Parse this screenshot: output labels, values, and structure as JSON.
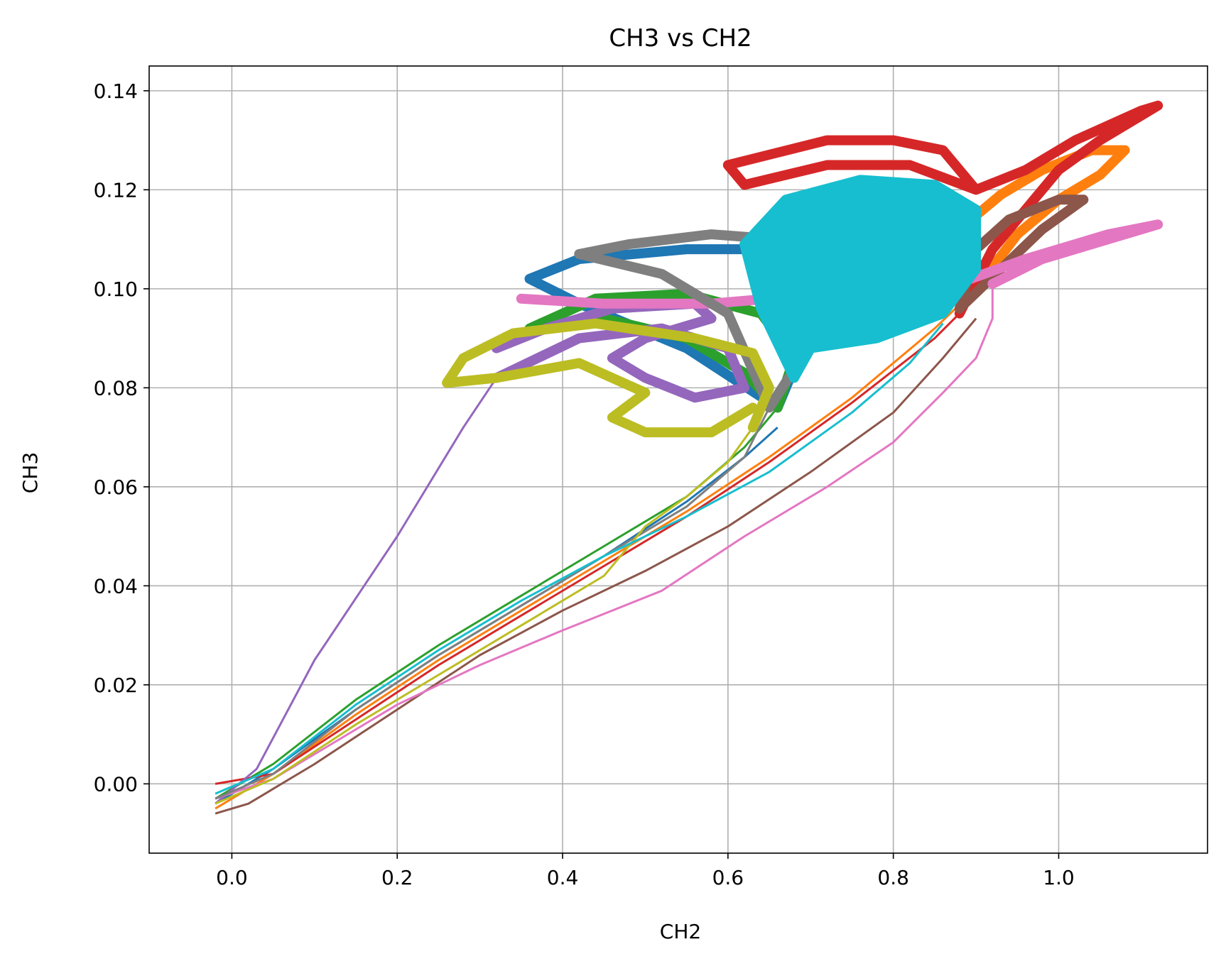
{
  "chart_data": {
    "type": "line",
    "title": "CH3 vs CH2",
    "xlabel": "CH2",
    "ylabel": "CH3",
    "xlim": [
      -0.1,
      1.18
    ],
    "ylim": [
      -0.014,
      0.145
    ],
    "grid": true,
    "x_ticks": [
      0.0,
      0.2,
      0.4,
      0.6,
      0.8,
      1.0
    ],
    "x_tick_labels": [
      "0.0",
      "0.2",
      "0.4",
      "0.6",
      "0.8",
      "1.0"
    ],
    "y_ticks": [
      0.0,
      0.02,
      0.04,
      0.06,
      0.08,
      0.1,
      0.12,
      0.14
    ],
    "y_tick_labels": [
      "0.00",
      "0.02",
      "0.04",
      "0.06",
      "0.08",
      "0.10",
      "0.12",
      "0.14"
    ],
    "colors": [
      "#1f77b4",
      "#ff7f0e",
      "#2ca02c",
      "#d62728",
      "#9467bd",
      "#8c564b",
      "#e377c2",
      "#7f7f7f",
      "#bcbd22",
      "#17becf"
    ],
    "series": [
      {
        "color": "#1f77b4",
        "ramp": [
          [
            -0.02,
            -0.004
          ],
          [
            0.05,
            0.003
          ],
          [
            0.15,
            0.015
          ],
          [
            0.25,
            0.026
          ],
          [
            0.35,
            0.036
          ],
          [
            0.45,
            0.046
          ],
          [
            0.55,
            0.057
          ],
          [
            0.62,
            0.066
          ],
          [
            0.66,
            0.072
          ]
        ],
        "loop": [
          [
            0.66,
            0.076
          ],
          [
            0.55,
            0.088
          ],
          [
            0.42,
            0.097
          ],
          [
            0.36,
            0.102
          ],
          [
            0.42,
            0.106
          ],
          [
            0.55,
            0.108
          ],
          [
            0.68,
            0.108
          ],
          [
            0.75,
            0.103
          ],
          [
            0.7,
            0.092
          ],
          [
            0.66,
            0.076
          ]
        ]
      },
      {
        "color": "#ff7f0e",
        "ramp": [
          [
            -0.02,
            -0.005
          ],
          [
            0.05,
            0.002
          ],
          [
            0.15,
            0.014
          ],
          [
            0.25,
            0.025
          ],
          [
            0.35,
            0.035
          ],
          [
            0.45,
            0.045
          ],
          [
            0.55,
            0.055
          ],
          [
            0.65,
            0.066
          ],
          [
            0.75,
            0.078
          ],
          [
            0.85,
            0.092
          ],
          [
            0.9,
            0.1
          ]
        ],
        "loop": [
          [
            0.9,
            0.1
          ],
          [
            0.95,
            0.111
          ],
          [
            1.0,
            0.118
          ],
          [
            1.05,
            0.123
          ],
          [
            1.08,
            0.128
          ],
          [
            1.04,
            0.128
          ],
          [
            0.98,
            0.124
          ],
          [
            0.93,
            0.119
          ],
          [
            0.88,
            0.112
          ],
          [
            0.9,
            0.1
          ]
        ]
      },
      {
        "color": "#2ca02c",
        "ramp": [
          [
            -0.02,
            -0.003
          ],
          [
            0.05,
            0.004
          ],
          [
            0.15,
            0.017
          ],
          [
            0.25,
            0.028
          ],
          [
            0.35,
            0.038
          ],
          [
            0.45,
            0.048
          ],
          [
            0.55,
            0.058
          ],
          [
            0.62,
            0.068
          ],
          [
            0.66,
            0.076
          ]
        ],
        "loop": [
          [
            0.66,
            0.076
          ],
          [
            0.62,
            0.083
          ],
          [
            0.55,
            0.09
          ],
          [
            0.45,
            0.094
          ],
          [
            0.36,
            0.092
          ],
          [
            0.44,
            0.098
          ],
          [
            0.55,
            0.099
          ],
          [
            0.64,
            0.095
          ],
          [
            0.68,
            0.086
          ],
          [
            0.66,
            0.076
          ]
        ]
      },
      {
        "color": "#d62728",
        "ramp": [
          [
            -0.02,
            0.0
          ],
          [
            0.05,
            0.002
          ],
          [
            0.15,
            0.013
          ],
          [
            0.25,
            0.024
          ],
          [
            0.35,
            0.034
          ],
          [
            0.45,
            0.044
          ],
          [
            0.55,
            0.054
          ],
          [
            0.65,
            0.065
          ],
          [
            0.75,
            0.077
          ],
          [
            0.85,
            0.09
          ],
          [
            0.88,
            0.095
          ]
        ],
        "loop": [
          [
            0.88,
            0.095
          ],
          [
            0.92,
            0.108
          ],
          [
            0.96,
            0.116
          ],
          [
            1.0,
            0.124
          ],
          [
            1.05,
            0.13
          ],
          [
            1.1,
            0.135
          ],
          [
            1.12,
            0.137
          ],
          [
            1.1,
            0.136
          ],
          [
            1.02,
            0.13
          ],
          [
            0.96,
            0.124
          ],
          [
            0.9,
            0.12
          ],
          [
            0.82,
            0.125
          ],
          [
            0.72,
            0.125
          ],
          [
            0.62,
            0.121
          ],
          [
            0.6,
            0.125
          ],
          [
            0.72,
            0.13
          ],
          [
            0.8,
            0.13
          ],
          [
            0.86,
            0.128
          ],
          [
            0.9,
            0.12
          ]
        ]
      },
      {
        "color": "#9467bd",
        "ramp": [
          [
            -0.02,
            -0.004
          ],
          [
            0.03,
            0.003
          ],
          [
            0.1,
            0.025
          ],
          [
            0.2,
            0.05
          ],
          [
            0.28,
            0.072
          ],
          [
            0.32,
            0.082
          ]
        ],
        "loop": [
          [
            0.32,
            0.082
          ],
          [
            0.42,
            0.09
          ],
          [
            0.52,
            0.092
          ],
          [
            0.6,
            0.088
          ],
          [
            0.62,
            0.08
          ],
          [
            0.56,
            0.078
          ],
          [
            0.5,
            0.082
          ],
          [
            0.46,
            0.086
          ],
          [
            0.5,
            0.09
          ],
          [
            0.58,
            0.094
          ],
          [
            0.56,
            0.097
          ],
          [
            0.46,
            0.096
          ],
          [
            0.38,
            0.092
          ],
          [
            0.32,
            0.088
          ]
        ]
      },
      {
        "color": "#8c564b",
        "ramp": [
          [
            -0.02,
            -0.006
          ],
          [
            0.02,
            -0.004
          ],
          [
            0.1,
            0.004
          ],
          [
            0.2,
            0.015
          ],
          [
            0.3,
            0.026
          ],
          [
            0.4,
            0.035
          ],
          [
            0.5,
            0.043
          ],
          [
            0.6,
            0.052
          ],
          [
            0.7,
            0.063
          ],
          [
            0.8,
            0.075
          ],
          [
            0.86,
            0.086
          ],
          [
            0.9,
            0.094
          ]
        ],
        "loop": [
          [
            0.88,
            0.096
          ],
          [
            0.93,
            0.104
          ],
          [
            0.98,
            0.112
          ],
          [
            1.03,
            0.118
          ],
          [
            1.0,
            0.118
          ],
          [
            0.94,
            0.114
          ],
          [
            0.9,
            0.108
          ],
          [
            0.88,
            0.096
          ]
        ]
      },
      {
        "color": "#e377c2",
        "ramp": [
          [
            -0.02,
            -0.003
          ],
          [
            0.05,
            0.001
          ],
          [
            0.12,
            0.008
          ],
          [
            0.2,
            0.016
          ],
          [
            0.3,
            0.024
          ],
          [
            0.4,
            0.031
          ],
          [
            0.52,
            0.039
          ],
          [
            0.62,
            0.05
          ],
          [
            0.72,
            0.06
          ],
          [
            0.8,
            0.069
          ],
          [
            0.86,
            0.079
          ],
          [
            0.9,
            0.086
          ],
          [
            0.92,
            0.094
          ],
          [
            0.92,
            0.101
          ]
        ],
        "loop": [
          [
            0.92,
            0.101
          ],
          [
            0.98,
            0.106
          ],
          [
            1.04,
            0.109
          ],
          [
            1.1,
            0.112
          ],
          [
            1.12,
            0.113
          ],
          [
            1.06,
            0.111
          ],
          [
            0.96,
            0.106
          ],
          [
            0.86,
            0.1
          ],
          [
            0.72,
            0.099
          ],
          [
            0.58,
            0.097
          ],
          [
            0.45,
            0.097
          ],
          [
            0.35,
            0.098
          ]
        ]
      },
      {
        "color": "#7f7f7f",
        "ramp": [
          [
            -0.02,
            -0.003
          ],
          [
            0.05,
            0.002
          ],
          [
            0.15,
            0.015
          ],
          [
            0.25,
            0.026
          ],
          [
            0.35,
            0.036
          ],
          [
            0.45,
            0.046
          ],
          [
            0.55,
            0.056
          ],
          [
            0.62,
            0.066
          ],
          [
            0.65,
            0.076
          ]
        ],
        "loop": [
          [
            0.65,
            0.076
          ],
          [
            0.6,
            0.095
          ],
          [
            0.52,
            0.103
          ],
          [
            0.42,
            0.107
          ],
          [
            0.48,
            0.109
          ],
          [
            0.58,
            0.111
          ],
          [
            0.66,
            0.11
          ],
          [
            0.7,
            0.104
          ],
          [
            0.72,
            0.094
          ],
          [
            0.65,
            0.076
          ]
        ]
      },
      {
        "color": "#bcbd22",
        "ramp": [
          [
            -0.02,
            -0.004
          ],
          [
            0.05,
            0.001
          ],
          [
            0.15,
            0.012
          ],
          [
            0.25,
            0.022
          ],
          [
            0.35,
            0.032
          ],
          [
            0.45,
            0.042
          ],
          [
            0.5,
            0.052
          ],
          [
            0.55,
            0.058
          ],
          [
            0.6,
            0.065
          ],
          [
            0.63,
            0.072
          ]
        ],
        "loop": [
          [
            0.63,
            0.072
          ],
          [
            0.65,
            0.08
          ],
          [
            0.63,
            0.087
          ],
          [
            0.56,
            0.09
          ],
          [
            0.44,
            0.093
          ],
          [
            0.34,
            0.091
          ],
          [
            0.28,
            0.086
          ],
          [
            0.26,
            0.081
          ],
          [
            0.32,
            0.082
          ],
          [
            0.42,
            0.085
          ],
          [
            0.5,
            0.079
          ],
          [
            0.46,
            0.074
          ],
          [
            0.5,
            0.071
          ],
          [
            0.58,
            0.071
          ],
          [
            0.63,
            0.076
          ]
        ]
      },
      {
        "color": "#17becf",
        "ramp": [
          [
            -0.02,
            -0.002
          ],
          [
            0.05,
            0.003
          ],
          [
            0.15,
            0.016
          ],
          [
            0.25,
            0.027
          ],
          [
            0.35,
            0.037
          ],
          [
            0.45,
            0.046
          ],
          [
            0.55,
            0.054
          ],
          [
            0.65,
            0.063
          ],
          [
            0.75,
            0.075
          ],
          [
            0.82,
            0.085
          ],
          [
            0.86,
            0.093
          ]
        ],
        "loop": [
          [
            0.68,
            0.082
          ],
          [
            0.64,
            0.096
          ],
          [
            0.62,
            0.109
          ],
          [
            0.67,
            0.118
          ],
          [
            0.76,
            0.122
          ],
          [
            0.85,
            0.121
          ],
          [
            0.9,
            0.116
          ],
          [
            0.9,
            0.104
          ],
          [
            0.86,
            0.095
          ],
          [
            0.78,
            0.09
          ],
          [
            0.7,
            0.088
          ],
          [
            0.68,
            0.082
          ]
        ]
      }
    ]
  }
}
